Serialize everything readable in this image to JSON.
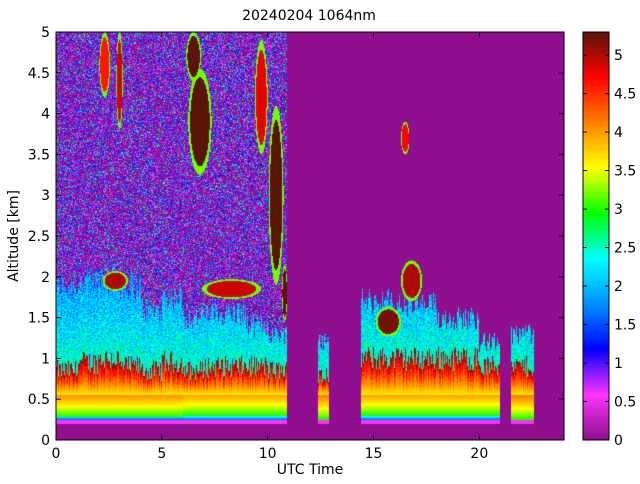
{
  "chart_data": {
    "type": "heatmap",
    "title": "20240204 1064nm",
    "xlabel": "UTC Time",
    "ylabel": "Altitude [km]",
    "xlim": [
      0,
      24
    ],
    "ylim": [
      0,
      5
    ],
    "xticks": [
      0,
      5,
      10,
      15,
      20
    ],
    "xtick_labels": [
      "0",
      "5",
      "10",
      "15",
      "20"
    ],
    "yticks": [
      0,
      0.5,
      1,
      1.5,
      2,
      2.5,
      3,
      3.5,
      4,
      4.5,
      5
    ],
    "ytick_labels": [
      "0",
      "0.5",
      "1",
      "1.5",
      "2",
      "2.5",
      "3",
      "3.5",
      "4",
      "4.5",
      "5"
    ],
    "colorbar": {
      "range": [
        0,
        5.3
      ],
      "ticks": [
        0,
        0.5,
        1,
        1.5,
        2,
        2.5,
        3,
        3.5,
        4,
        4.5,
        5
      ],
      "tick_labels": [
        "0",
        "0.5",
        "1",
        "1.5",
        "2",
        "2.5",
        "3",
        "3.5",
        "4",
        "4.5",
        "5"
      ],
      "colormap": [
        "#8a0f8c",
        "#ff33ff",
        "#0000ff",
        "#0090ff",
        "#00ffff",
        "#00ff00",
        "#ffff00",
        "#ff8000",
        "#ff0000",
        "#5a1408"
      ]
    },
    "background_color": "#8f0f8f",
    "data_gaps_utc": [
      [
        10.9,
        12.4
      ],
      [
        12.9,
        14.4
      ],
      [
        22.6,
        24
      ]
    ],
    "columns": [
      {
        "t0": 0.0,
        "t1": 1.0,
        "base": 0.28,
        "pbl": 0.85,
        "mix": 1.9,
        "noise": 5.0
      },
      {
        "t0": 1.0,
        "t1": 2.0,
        "base": 0.28,
        "pbl": 0.95,
        "mix": 1.95,
        "noise": 5.0
      },
      {
        "t0": 2.0,
        "t1": 3.0,
        "base": 0.28,
        "pbl": 1.0,
        "mix": 2.0,
        "noise": 5.0
      },
      {
        "t0": 3.0,
        "t1": 4.0,
        "base": 0.28,
        "pbl": 0.9,
        "mix": 1.9,
        "noise": 5.0
      },
      {
        "t0": 4.0,
        "t1": 5.0,
        "base": 0.28,
        "pbl": 0.85,
        "mix": 1.6,
        "noise": 5.0
      },
      {
        "t0": 5.0,
        "t1": 6.0,
        "base": 0.28,
        "pbl": 0.95,
        "mix": 1.75,
        "noise": 5.0
      },
      {
        "t0": 6.0,
        "t1": 7.0,
        "base": 0.3,
        "pbl": 0.85,
        "mix": 1.5,
        "noise": 5.0
      },
      {
        "t0": 7.0,
        "t1": 8.0,
        "base": 0.3,
        "pbl": 0.9,
        "mix": 1.55,
        "noise": 5.0
      },
      {
        "t0": 8.0,
        "t1": 9.0,
        "base": 0.3,
        "pbl": 0.9,
        "mix": 1.55,
        "noise": 5.0
      },
      {
        "t0": 9.0,
        "t1": 10.0,
        "base": 0.3,
        "pbl": 0.9,
        "mix": 1.4,
        "noise": 5.0
      },
      {
        "t0": 10.0,
        "t1": 10.9,
        "base": 0.3,
        "pbl": 0.85,
        "mix": 1.3,
        "noise": 5.0
      },
      {
        "t0": 12.4,
        "t1": 12.9,
        "base": 0.25,
        "pbl": 0.8,
        "mix": 1.2,
        "noise": 1.3
      },
      {
        "t0": 14.4,
        "t1": 16.0,
        "base": 0.3,
        "pbl": 1.0,
        "mix": 1.7,
        "noise": 0
      },
      {
        "t0": 16.0,
        "t1": 18.0,
        "base": 0.3,
        "pbl": 1.0,
        "mix": 1.65,
        "noise": 0
      },
      {
        "t0": 18.0,
        "t1": 20.0,
        "base": 0.3,
        "pbl": 1.0,
        "mix": 1.5,
        "noise": 0
      },
      {
        "t0": 20.0,
        "t1": 21.0,
        "base": 0.3,
        "pbl": 0.9,
        "mix": 1.2,
        "noise": 0
      },
      {
        "t0": 21.5,
        "t1": 22.6,
        "base": 0.25,
        "pbl": 0.9,
        "mix": 1.3,
        "noise": 0
      }
    ],
    "cloud_features": [
      {
        "kind": "blob",
        "t_center": 6.8,
        "t_halfwidth": 0.55,
        "z_center": 3.9,
        "z_halfheight": 0.65,
        "value": 5.3
      },
      {
        "kind": "blob",
        "t_center": 6.5,
        "t_halfwidth": 0.35,
        "z_center": 4.7,
        "z_halfheight": 0.3,
        "value": 5.3
      },
      {
        "kind": "blob",
        "t_center": 10.4,
        "t_halfwidth": 0.35,
        "z_center": 3.0,
        "z_halfheight": 1.1,
        "value": 5.3
      },
      {
        "kind": "blob",
        "t_center": 9.7,
        "t_halfwidth": 0.3,
        "z_center": 4.2,
        "z_halfheight": 0.7,
        "value": 4.8
      },
      {
        "kind": "blob",
        "t_center": 10.8,
        "t_halfwidth": 0.12,
        "z_center": 1.8,
        "z_halfheight": 0.35,
        "value": 5.3
      },
      {
        "kind": "blob",
        "t_center": 2.3,
        "t_halfwidth": 0.25,
        "z_center": 4.6,
        "z_halfheight": 0.4,
        "value": 4.6
      },
      {
        "kind": "blob",
        "t_center": 3.0,
        "t_halfwidth": 0.15,
        "z_center": 4.4,
        "z_halfheight": 0.6,
        "value": 4.9
      },
      {
        "kind": "blob",
        "t_center": 16.5,
        "t_halfwidth": 0.2,
        "z_center": 3.7,
        "z_halfheight": 0.2,
        "value": 4.7
      },
      {
        "kind": "blob",
        "t_center": 16.8,
        "t_halfwidth": 0.5,
        "z_center": 1.95,
        "z_halfheight": 0.25,
        "value": 5.0
      },
      {
        "kind": "blob",
        "t_center": 15.7,
        "t_halfwidth": 0.6,
        "z_center": 1.45,
        "z_halfheight": 0.18,
        "value": 5.2
      },
      {
        "kind": "blob",
        "t_center": 2.8,
        "t_halfwidth": 0.6,
        "z_center": 1.95,
        "z_halfheight": 0.12,
        "value": 5.0
      },
      {
        "kind": "blob",
        "t_center": 8.3,
        "t_halfwidth": 1.4,
        "z_center": 1.85,
        "z_halfheight": 0.12,
        "value": 4.9
      }
    ]
  }
}
